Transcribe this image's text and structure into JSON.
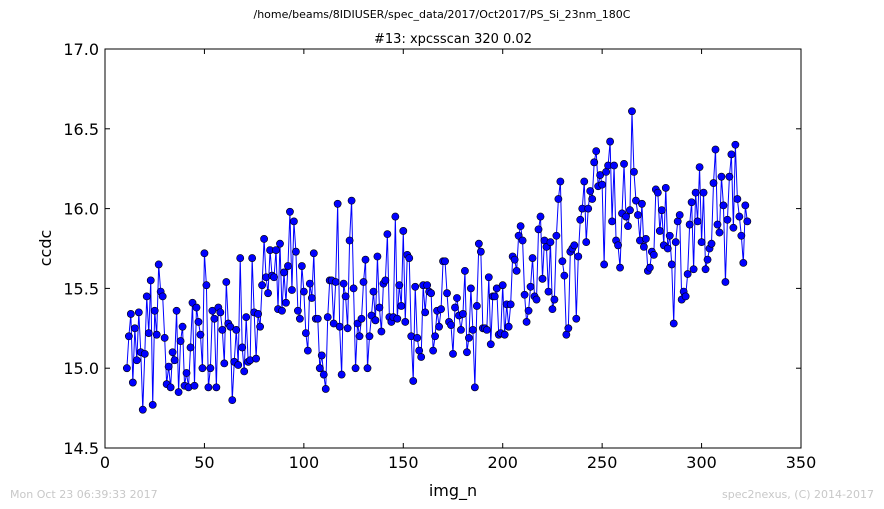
{
  "header": {
    "path": "/home/beams/8IDIUSER/spec_data/2017/Oct2017/PS_Si_23nm_180C"
  },
  "footer": {
    "timestamp": "Mon Oct 23 06:39:33 2017",
    "credit": "spec2nexus, (C) 2014-2017"
  },
  "chart_data": {
    "type": "line",
    "title": "#13: xpcsscan 320 0.02",
    "xlabel": "img_n",
    "ylabel": "ccdc",
    "xlim": [
      0,
      350
    ],
    "ylim": [
      14.5,
      17.0
    ],
    "xticks": [
      "0",
      "50",
      "100",
      "150",
      "200",
      "250",
      "300",
      "350"
    ],
    "yticks": [
      "14.5",
      "15.0",
      "15.5",
      "16.0",
      "16.5",
      "17.0"
    ],
    "grid": false,
    "marker": "circle",
    "line_color": "#0000ff",
    "series": [
      {
        "x_start": 11,
        "x_step": 1,
        "values": [
          15.0,
          15.2,
          15.34,
          14.91,
          15.25,
          15.05,
          15.35,
          15.1,
          14.74,
          15.09,
          15.45,
          15.22,
          15.55,
          14.77,
          15.36,
          15.21,
          15.65,
          15.48,
          15.45,
          15.19,
          14.9,
          15.01,
          14.88,
          15.1,
          15.05,
          15.36,
          14.85,
          15.17,
          15.26,
          14.89,
          14.97,
          14.88,
          15.13,
          15.41,
          14.89,
          15.38,
          15.29,
          15.21,
          15.0,
          15.72,
          15.52,
          14.88,
          15.0,
          15.36,
          15.31,
          14.88,
          15.38,
          15.35,
          15.24,
          15.03,
          15.54,
          15.28,
          15.26,
          14.8,
          15.04,
          15.24,
          15.02,
          15.69,
          15.13,
          14.98,
          15.32,
          15.04,
          15.05,
          15.69,
          15.35,
          15.06,
          15.34,
          15.26,
          15.52,
          15.81,
          15.57,
          15.47,
          15.74,
          15.58,
          15.57,
          15.74,
          15.37,
          15.78,
          15.36,
          15.6,
          15.41,
          15.64,
          15.98,
          15.49,
          15.92,
          15.73,
          15.36,
          15.31,
          15.64,
          15.48,
          15.22,
          15.11,
          15.53,
          15.44,
          15.72,
          15.31,
          15.31,
          15.0,
          15.08,
          14.96,
          14.87,
          15.32,
          15.55,
          15.55,
          15.28,
          15.54,
          16.03,
          15.26,
          14.96,
          15.53,
          15.45,
          15.25,
          15.8,
          16.05,
          15.5,
          15.0,
          15.28,
          15.2,
          15.31,
          15.54,
          15.68,
          15.0,
          15.2,
          15.33,
          15.48,
          15.3,
          15.7,
          15.38,
          15.23,
          15.53,
          15.55,
          15.84,
          15.32,
          15.29,
          15.32,
          15.95,
          15.31,
          15.52,
          15.39,
          15.86,
          15.29,
          15.71,
          15.69,
          15.2,
          14.92,
          15.51,
          15.19,
          15.11,
          15.07,
          15.52,
          15.35,
          15.52,
          15.48,
          15.47,
          15.11,
          15.2,
          15.36,
          15.26,
          15.37,
          15.67,
          15.67,
          15.47,
          15.29,
          15.27,
          15.09,
          15.38,
          15.44,
          15.33,
          15.24,
          15.34,
          15.61,
          15.1,
          15.19,
          15.5,
          15.24,
          14.88,
          15.39,
          15.78,
          15.73,
          15.25,
          15.25,
          15.24,
          15.57,
          15.15,
          15.45,
          15.45,
          15.5,
          15.21,
          15.22,
          15.52,
          15.21,
          15.4,
          15.26,
          15.4,
          15.7,
          15.68,
          15.61,
          15.83,
          15.89,
          15.8,
          15.46,
          15.29,
          15.36,
          15.51,
          15.69,
          15.45,
          15.43,
          15.87,
          15.95,
          15.56,
          15.8,
          15.76,
          15.48,
          15.79,
          15.37,
          15.43,
          15.83,
          16.06,
          16.17,
          15.67,
          15.58,
          15.21,
          15.25,
          15.73,
          15.75,
          15.77,
          15.31,
          15.7,
          15.93,
          16.0,
          16.17,
          15.79,
          16.0,
          16.11,
          16.06,
          16.29,
          16.36,
          16.14,
          16.21,
          16.15,
          15.65,
          16.23,
          16.27,
          16.42,
          15.92,
          16.27,
          15.8,
          15.77,
          15.63,
          15.97,
          16.28,
          15.95,
          15.89,
          15.99,
          16.61,
          16.23,
          16.05,
          15.96,
          15.8,
          16.03,
          15.76,
          15.81,
          15.61,
          15.63,
          15.73,
          15.71,
          16.12,
          16.1,
          15.86,
          15.99,
          15.77,
          16.13,
          15.75,
          15.83,
          15.65,
          15.28,
          15.79,
          15.92,
          15.96,
          15.43,
          15.48,
          15.45,
          15.59,
          15.9,
          16.04,
          15.62,
          16.1,
          15.92,
          16.26,
          15.79,
          16.1,
          15.62,
          15.68,
          15.75,
          15.78,
          16.16,
          16.37,
          15.9,
          15.85,
          16.2,
          16.02,
          15.54,
          15.93,
          16.2,
          16.34,
          15.88,
          16.4,
          16.06,
          15.95,
          15.83,
          15.66,
          16.02,
          15.92
        ]
      }
    ]
  }
}
